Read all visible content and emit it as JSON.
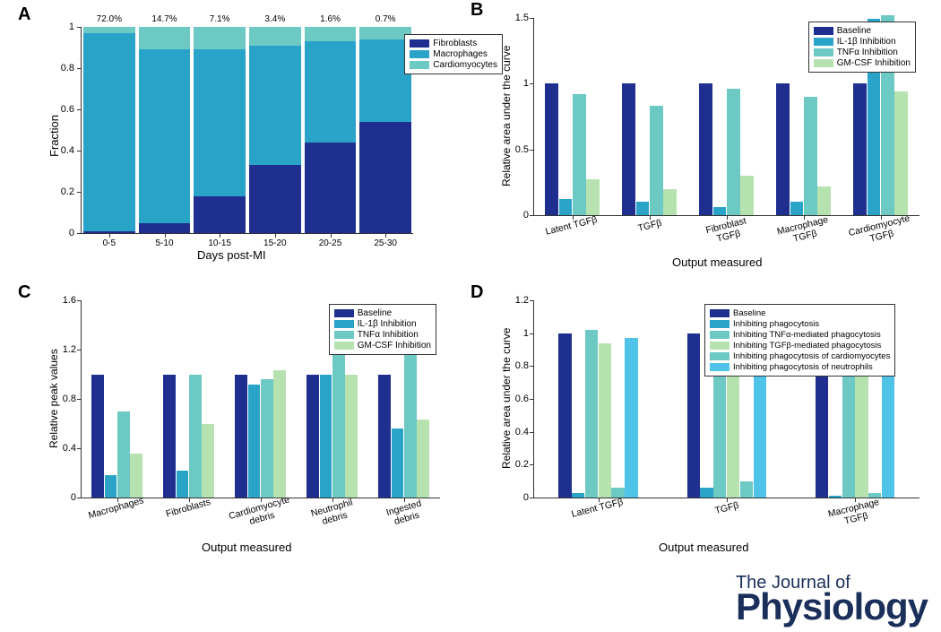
{
  "colors": {
    "dark_blue": "#1e2f8f",
    "mid_blue": "#2aa3c9",
    "teal": "#6cc9c4",
    "pale_green": "#b6e2b0",
    "cyan": "#4fc4e8",
    "axis": "#333333",
    "logo": "#1a2f5a"
  },
  "panelA": {
    "label": "A",
    "ylabel": "Fraction",
    "xlabel": "Days post-MI",
    "categories": [
      "0-5",
      "5-10",
      "10-15",
      "15-20",
      "20-25",
      "25-30"
    ],
    "percents": [
      "72.0%",
      "14.7%",
      "7.1%",
      "3.4%",
      "1.6%",
      "0.7%"
    ],
    "stacks": [
      {
        "fibro": 0.01,
        "macro": 0.96,
        "cardio": 0.03
      },
      {
        "fibro": 0.05,
        "macro": 0.84,
        "cardio": 0.11
      },
      {
        "fibro": 0.18,
        "macro": 0.71,
        "cardio": 0.11
      },
      {
        "fibro": 0.33,
        "macro": 0.58,
        "cardio": 0.09
      },
      {
        "fibro": 0.44,
        "macro": 0.49,
        "cardio": 0.07
      },
      {
        "fibro": 0.54,
        "macro": 0.4,
        "cardio": 0.06
      }
    ],
    "yticks": [
      0,
      0.2,
      0.4,
      0.6,
      0.8,
      1
    ],
    "legend": [
      "Fibroblasts",
      "Macrophages",
      "Cardiomyocytes"
    ],
    "legend_colors": [
      "dark_blue",
      "mid_blue",
      "teal"
    ]
  },
  "panelB": {
    "label": "B",
    "ylabel": "Relative area under the curve",
    "xlabel": "Output measured",
    "categories": [
      "Latent TGFβ",
      "TGFβ",
      "Fibroblast\nTGFβ",
      "Macrophage\nTGFβ",
      "Cardiomyocyte\nTGFβ"
    ],
    "series": [
      "Baseline",
      "IL-1β Inhibition",
      "TNFα Inhibition",
      "GM-CSF Inhibition"
    ],
    "series_colors": [
      "dark_blue",
      "mid_blue",
      "teal",
      "pale_green"
    ],
    "values": [
      [
        1.0,
        0.12,
        0.92,
        0.27
      ],
      [
        1.0,
        0.1,
        0.83,
        0.2
      ],
      [
        1.0,
        0.06,
        0.96,
        0.3
      ],
      [
        1.0,
        0.1,
        0.9,
        0.22
      ],
      [
        1.0,
        1.49,
        1.52,
        0.94
      ]
    ],
    "ylim": 1.5,
    "yticks": [
      0,
      0.5,
      1,
      1.5
    ]
  },
  "panelC": {
    "label": "C",
    "ylabel": "Relative peak values",
    "xlabel": "Output measured",
    "categories": [
      "Macrophages",
      "Fibroblasts",
      "Cardiomyocyte\ndebris",
      "Neutrophil\ndebris",
      "Ingested\ndebris"
    ],
    "series": [
      "Baseline",
      "IL-1β Inhibition",
      "TNFα Inhibition",
      "GM-CSF Inhibition"
    ],
    "series_colors": [
      "dark_blue",
      "mid_blue",
      "teal",
      "pale_green"
    ],
    "values": [
      [
        1.0,
        0.18,
        0.7,
        0.36
      ],
      [
        1.0,
        0.22,
        1.0,
        0.6
      ],
      [
        1.0,
        0.92,
        0.96,
        1.03
      ],
      [
        1.0,
        1.0,
        1.17,
        1.0
      ],
      [
        1.0,
        0.56,
        1.36,
        0.63
      ]
    ],
    "ylim": 1.6,
    "yticks": [
      0,
      0.4,
      0.8,
      1.2,
      1.6
    ]
  },
  "panelD": {
    "label": "D",
    "ylabel": "Relative area under the curve",
    "xlabel": "Output measured",
    "categories": [
      "Latent TGFβ",
      "TGFβ",
      "Macrophage\nTGFβ"
    ],
    "series": [
      "Baseline",
      "Inhibiting phagocytosis",
      "Inhibiting TNFα-mediated phagocytosis",
      "Inhibiting TGFβ-mediated phagocytosis",
      "Inhibiting phagocytosis of cardiomyocytes",
      "Inhibiting phagocytosis of neutrophils"
    ],
    "series_colors": [
      "dark_blue",
      "mid_blue",
      "teal",
      "pale_green",
      "teal",
      "cyan"
    ],
    "values": [
      [
        1.0,
        0.03,
        1.02,
        0.94,
        0.06,
        0.97
      ],
      [
        1.0,
        0.06,
        1.03,
        0.93,
        0.1,
        0.96
      ],
      [
        1.0,
        0.01,
        1.03,
        0.93,
        0.03,
        0.97
      ]
    ],
    "ylim": 1.2,
    "yticks": [
      0,
      0.2,
      0.4,
      0.6,
      0.8,
      1,
      1.2
    ]
  },
  "journal": {
    "line1": "The Journal of",
    "line2": "Physiology"
  }
}
